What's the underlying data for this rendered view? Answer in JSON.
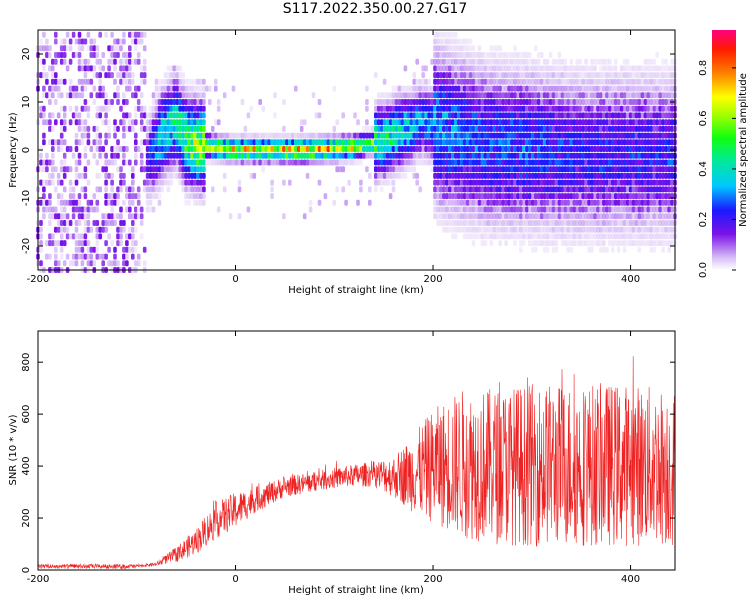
{
  "page": {
    "title": "S117.2022.350.00.27.G17"
  },
  "colors": {
    "spectrum_low": "#ddc8f5",
    "spectrum_mid": "#7a12e8",
    "spectrum_high": "#ff1a00",
    "snr_line": "#ee2222"
  },
  "chart_data": [
    {
      "type": "heatmap",
      "title": "",
      "xlabel": "Height of straight line (km)",
      "ylabel": "Frequency (Hz)",
      "xlim": [
        -200,
        445
      ],
      "ylim": [
        -25,
        25
      ],
      "x_ticks": [
        -200,
        0,
        200,
        400
      ],
      "y_ticks": [
        -20,
        -10,
        0,
        10,
        20
      ],
      "colorbar": {
        "label": "Normalized spectral amplitude",
        "range": [
          0,
          0.95
        ],
        "ticks": [
          0.0,
          0.2,
          0.4,
          0.6,
          0.8
        ],
        "colormap": "rainbow (white-purple-blue-cyan-green-yellow-red-magenta)"
      },
      "ridge": {
        "description": "dominant spectral ridge frequency (Hz) vs height (km)",
        "x": [
          -90,
          -75,
          -60,
          -50,
          -40,
          0,
          40,
          80,
          120,
          150,
          170,
          190,
          210,
          250,
          300,
          350,
          400,
          445
        ],
        "y": [
          -3,
          3,
          6,
          2,
          1,
          0,
          0,
          0,
          0.5,
          2,
          4,
          6,
          4,
          1,
          0,
          -1,
          -1,
          -1
        ],
        "amplitude": [
          0.2,
          0.45,
          0.5,
          0.6,
          0.7,
          0.8,
          0.85,
          0.85,
          0.8,
          0.5,
          0.4,
          0.3,
          0.3,
          0.25,
          0.25,
          0.2,
          0.2,
          0.2
        ]
      }
    },
    {
      "type": "line",
      "title": "",
      "xlabel": "Height of straight line (km)",
      "ylabel": "SNR (10 * v/v)",
      "xlim": [
        -200,
        445
      ],
      "ylim": [
        0,
        920
      ],
      "x_ticks": [
        -200,
        0,
        200,
        400
      ],
      "y_ticks": [
        0,
        200,
        400,
        600,
        800
      ],
      "series": [
        {
          "color": "#ee2222",
          "envelope": {
            "x": [
              -200,
              -100,
              -80,
              -60,
              -40,
              -20,
              0,
              20,
              50,
              80,
              110,
              140,
              160,
              180,
              200,
              230,
              260,
              300,
              350,
              400,
              445
            ],
            "base": [
              10,
              10,
              15,
              30,
              60,
              120,
              160,
              220,
              280,
              300,
              320,
              320,
              280,
              220,
              180,
              120,
              100,
              90,
              90,
              90,
              90
            ],
            "high": [
              20,
              20,
              30,
              90,
              160,
              260,
              300,
              320,
              360,
              380,
              400,
              420,
              440,
              520,
              620,
              700,
              700,
              720,
              720,
              720,
              700
            ]
          }
        }
      ]
    }
  ]
}
